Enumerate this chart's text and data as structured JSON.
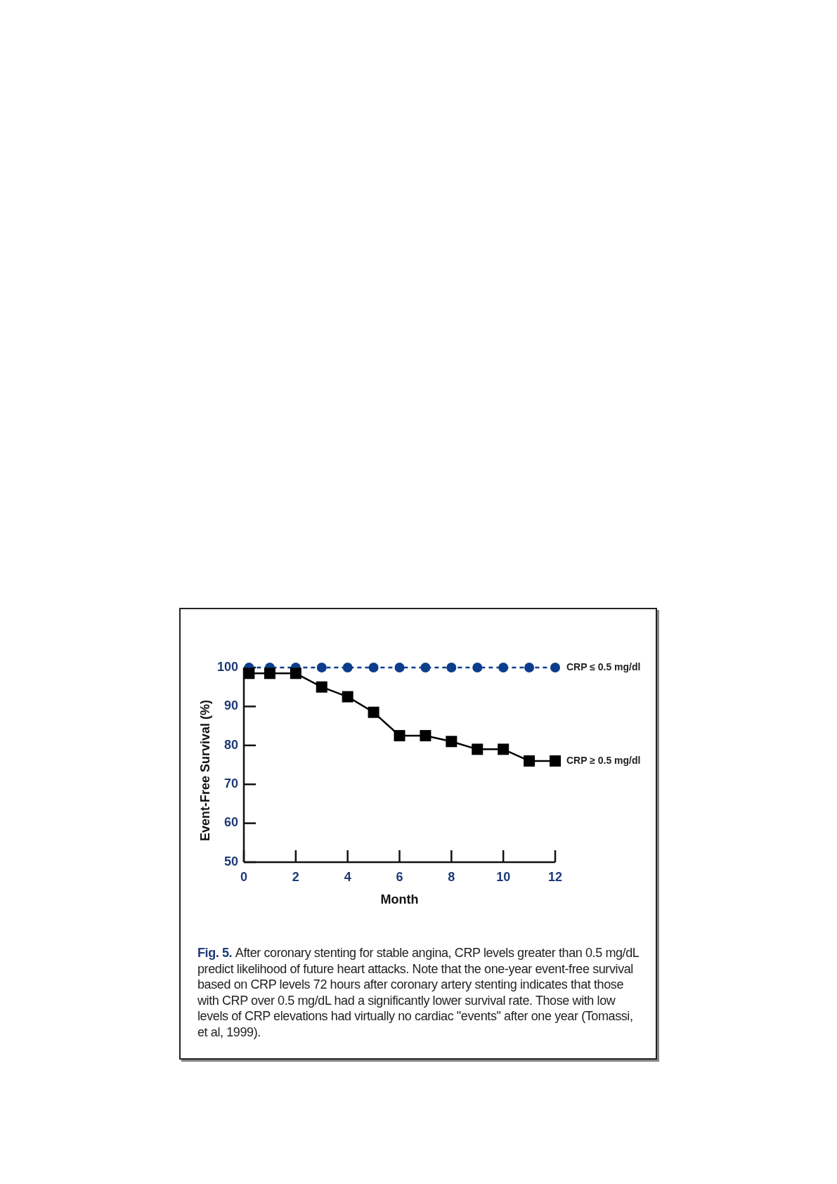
{
  "chart_data": {
    "type": "line",
    "xlabel": "Month",
    "ylabel": "Event-Free Survival (%)",
    "x": [
      0.2,
      1,
      2,
      3,
      4,
      5,
      6,
      7,
      8,
      9,
      10,
      11,
      12
    ],
    "series": [
      {
        "name": "CRP ≤ 0.5 mg/dl",
        "color": "#0b3d8c",
        "marker": "circle",
        "line_style": "dashed",
        "values": [
          100,
          100,
          100,
          100,
          100,
          100,
          100,
          100,
          100,
          100,
          100,
          100,
          100
        ]
      },
      {
        "name": "CRP ≥ 0.5 mg/dl",
        "color": "#000000",
        "marker": "square",
        "line_style": "solid",
        "values": [
          98.5,
          98.5,
          98.5,
          95,
          92.5,
          88.5,
          82.5,
          82.5,
          81,
          79,
          79,
          76,
          76
        ]
      }
    ],
    "xlim": [
      0,
      12
    ],
    "ylim": [
      50,
      100
    ],
    "xticks": [
      0,
      2,
      4,
      6,
      8,
      10,
      12
    ],
    "yticks": [
      50,
      60,
      70,
      80,
      90,
      100
    ],
    "annotations": [
      "Fig. 5.",
      "After coronary stenting for stable angina, CRP levels greater than 0.5 mg/dL predict likelihood of future heart attacks. Note that the one-year event-free survival based on CRP levels 72 hours after coronary artery stenting indicates that those with CRP over 0.5 mg/dL had a significantly lower survival rate. Those with low levels of CRP elevations had virtually no cardiac \"events\" after one year (Tomassi, et al, 1999)."
    ]
  }
}
